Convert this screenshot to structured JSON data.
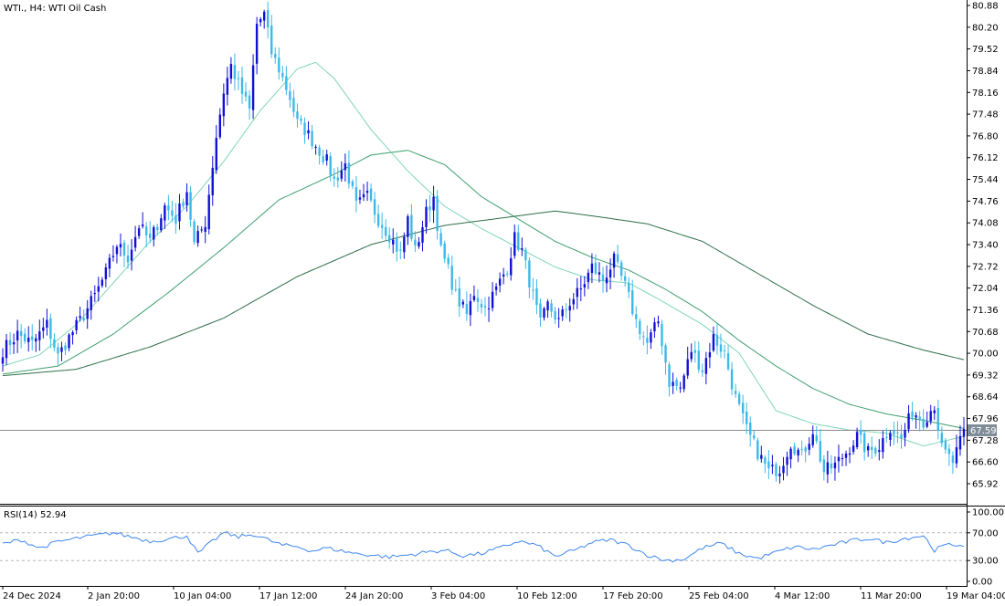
{
  "chart_data": [
    {
      "type": "candlestick",
      "title": "WTI., H4:  WTI Oil Cash",
      "y_ticks": [
        80.88,
        80.2,
        79.52,
        78.84,
        78.16,
        77.48,
        76.8,
        76.12,
        75.44,
        74.76,
        74.08,
        73.4,
        72.72,
        72.04,
        71.36,
        70.68,
        70.0,
        69.32,
        68.64,
        67.96,
        67.28,
        66.6,
        65.92
      ],
      "ylim": [
        65.5,
        81.0
      ],
      "current_price": "67.59",
      "current_price_value": 67.59,
      "x_tick_labels": [
        "24 Dec 2024",
        "2 Jan 20:00",
        "10 Jan 04:00",
        "17 Jan 12:00",
        "24 Jan 20:00",
        "3 Feb 04:00",
        "10 Feb 12:00",
        "17 Feb 20:00",
        "25 Feb 04:00",
        "4 Mar 12:00",
        "11 Mar 20:00",
        "19 Mar 04:00"
      ],
      "close_path": [
        [
          0,
          70.1
        ],
        [
          4,
          70.6
        ],
        [
          8,
          70.3
        ],
        [
          12,
          70.9
        ],
        [
          15,
          69.9
        ],
        [
          18,
          70.5
        ],
        [
          22,
          71.2
        ],
        [
          25,
          71.8
        ],
        [
          28,
          72.5
        ],
        [
          31,
          73.4
        ],
        [
          34,
          73.0
        ],
        [
          37,
          74.0
        ],
        [
          40,
          73.5
        ],
        [
          44,
          74.6
        ],
        [
          47,
          74.2
        ],
        [
          50,
          75.1
        ],
        [
          52,
          73.4
        ],
        [
          55,
          74.1
        ],
        [
          58,
          76.8
        ],
        [
          60,
          78.2
        ],
        [
          62,
          79.0
        ],
        [
          64,
          78.4
        ],
        [
          67,
          77.6
        ],
        [
          69,
          80.3
        ],
        [
          71,
          80.6
        ],
        [
          73,
          79.4
        ],
        [
          75,
          78.9
        ],
        [
          78,
          78.0
        ],
        [
          80,
          77.2
        ],
        [
          82,
          77.0
        ],
        [
          85,
          76.5
        ],
        [
          88,
          76.0
        ],
        [
          90,
          75.4
        ],
        [
          93,
          75.9
        ],
        [
          96,
          74.6
        ],
        [
          99,
          74.9
        ],
        [
          102,
          74.2
        ],
        [
          105,
          73.7
        ],
        [
          108,
          73.1
        ],
        [
          110,
          74.2
        ],
        [
          112,
          73.2
        ],
        [
          115,
          74.4
        ],
        [
          117,
          74.9
        ],
        [
          119,
          73.2
        ],
        [
          121,
          72.6
        ],
        [
          123,
          71.8
        ],
        [
          126,
          71.2
        ],
        [
          128,
          71.9
        ],
        [
          131,
          71.4
        ],
        [
          134,
          72.0
        ],
        [
          137,
          72.7
        ],
        [
          139,
          73.6
        ],
        [
          141,
          73.2
        ],
        [
          144,
          71.8
        ],
        [
          146,
          70.9
        ],
        [
          148,
          71.5
        ],
        [
          151,
          71.0
        ],
        [
          154,
          71.6
        ],
        [
          157,
          72.0
        ],
        [
          160,
          72.7
        ],
        [
          163,
          72.3
        ],
        [
          166,
          72.9
        ],
        [
          169,
          72.1
        ],
        [
          172,
          71.0
        ],
        [
          175,
          70.3
        ],
        [
          178,
          71.0
        ],
        [
          181,
          69.1
        ],
        [
          184,
          68.9
        ],
        [
          187,
          70.1
        ],
        [
          190,
          69.5
        ],
        [
          193,
          70.5
        ],
        [
          196,
          70.0
        ],
        [
          199,
          68.6
        ],
        [
          202,
          67.6
        ],
        [
          205,
          66.9
        ],
        [
          208,
          66.3
        ],
        [
          211,
          66.4
        ],
        [
          214,
          67.2
        ],
        [
          217,
          66.8
        ],
        [
          220,
          67.6
        ],
        [
          223,
          66.3
        ],
        [
          226,
          66.5
        ],
        [
          229,
          66.9
        ],
        [
          232,
          67.4
        ],
        [
          235,
          66.9
        ],
        [
          238,
          67.1
        ],
        [
          241,
          67.7
        ],
        [
          244,
          67.3
        ],
        [
          247,
          68.2
        ],
        [
          250,
          67.9
        ],
        [
          253,
          68.4
        ],
        [
          255,
          67.0
        ],
        [
          258,
          66.6
        ],
        [
          261,
          67.5
        ]
      ],
      "moving_averages": [
        {
          "color": "#7fd6b5",
          "points": [
            [
              0,
              69.6
            ],
            [
              10,
              69.95
            ],
            [
              20,
              70.9
            ],
            [
              30,
              72.2
            ],
            [
              40,
              73.5
            ],
            [
              50,
              74.6
            ],
            [
              60,
              76.0
            ],
            [
              70,
              77.6
            ],
            [
              80,
              78.9
            ],
            [
              85,
              79.1
            ],
            [
              90,
              78.6
            ],
            [
              100,
              77.0
            ],
            [
              110,
              75.7
            ],
            [
              120,
              74.6
            ],
            [
              130,
              73.9
            ],
            [
              140,
              73.3
            ],
            [
              150,
              72.7
            ],
            [
              160,
              72.3
            ],
            [
              170,
              72.2
            ],
            [
              178,
              71.7
            ],
            [
              190,
              70.9
            ],
            [
              200,
              70.0
            ],
            [
              210,
              68.2
            ],
            [
              220,
              67.8
            ],
            [
              230,
              67.6
            ],
            [
              240,
              67.5
            ],
            [
              250,
              67.1
            ],
            [
              261,
              67.4
            ]
          ]
        },
        {
          "color": "#3f9f6e",
          "points": [
            [
              0,
              69.35
            ],
            [
              15,
              69.6
            ],
            [
              30,
              70.6
            ],
            [
              45,
              71.9
            ],
            [
              60,
              73.3
            ],
            [
              75,
              74.8
            ],
            [
              90,
              75.6
            ],
            [
              100,
              76.2
            ],
            [
              110,
              76.35
            ],
            [
              120,
              75.9
            ],
            [
              130,
              74.9
            ],
            [
              140,
              74.2
            ],
            [
              150,
              73.5
            ],
            [
              160,
              73.0
            ],
            [
              170,
              72.6
            ],
            [
              180,
              72.0
            ],
            [
              190,
              71.3
            ],
            [
              200,
              70.4
            ],
            [
              210,
              69.6
            ],
            [
              220,
              68.9
            ],
            [
              230,
              68.4
            ],
            [
              240,
              68.1
            ],
            [
              250,
              67.9
            ],
            [
              261,
              67.65
            ]
          ]
        },
        {
          "color": "#2e6e48",
          "points": [
            [
              0,
              69.3
            ],
            [
              20,
              69.5
            ],
            [
              40,
              70.2
            ],
            [
              60,
              71.1
            ],
            [
              80,
              72.4
            ],
            [
              100,
              73.4
            ],
            [
              120,
              74.0
            ],
            [
              140,
              74.3
            ],
            [
              150,
              74.45
            ],
            [
              160,
              74.3
            ],
            [
              175,
              74.05
            ],
            [
              190,
              73.5
            ],
            [
              205,
              72.5
            ],
            [
              220,
              71.5
            ],
            [
              235,
              70.6
            ],
            [
              250,
              70.1
            ],
            [
              261,
              69.8
            ]
          ]
        }
      ],
      "grid": false
    },
    {
      "type": "line",
      "title": "RSI(14) 52.94",
      "y_ticks": [
        "100.00",
        "70.00",
        "30.00",
        "0.00"
      ],
      "ylim": [
        0,
        100
      ],
      "levels": [
        70,
        30
      ],
      "series": [
        {
          "color": "#3d86f0",
          "points": [
            [
              0,
              54
            ],
            [
              5,
              60
            ],
            [
              10,
              48
            ],
            [
              15,
              57
            ],
            [
              20,
              62
            ],
            [
              25,
              66
            ],
            [
              30,
              70
            ],
            [
              35,
              64
            ],
            [
              40,
              58
            ],
            [
              45,
              61
            ],
            [
              50,
              66
            ],
            [
              53,
              40
            ],
            [
              57,
              58
            ],
            [
              60,
              70
            ],
            [
              64,
              64
            ],
            [
              68,
              68
            ],
            [
              72,
              60
            ],
            [
              76,
              52
            ],
            [
              80,
              50
            ],
            [
              84,
              44
            ],
            [
              88,
              48
            ],
            [
              92,
              44
            ],
            [
              96,
              40
            ],
            [
              100,
              38
            ],
            [
              105,
              35
            ],
            [
              110,
              38
            ],
            [
              115,
              42
            ],
            [
              120,
              45
            ],
            [
              125,
              37
            ],
            [
              130,
              40
            ],
            [
              135,
              48
            ],
            [
              140,
              58
            ],
            [
              145,
              52
            ],
            [
              150,
              36
            ],
            [
              155,
              44
            ],
            [
              160,
              56
            ],
            [
              165,
              60
            ],
            [
              170,
              52
            ],
            [
              175,
              38
            ],
            [
              180,
              30
            ],
            [
              185,
              32
            ],
            [
              190,
              48
            ],
            [
              195,
              55
            ],
            [
              200,
              40
            ],
            [
              205,
              33
            ],
            [
              210,
              42
            ],
            [
              215,
              50
            ],
            [
              220,
              46
            ],
            [
              225,
              52
            ],
            [
              230,
              58
            ],
            [
              235,
              62
            ],
            [
              240,
              56
            ],
            [
              245,
              62
            ],
            [
              250,
              66
            ],
            [
              253,
              45
            ],
            [
              256,
              52
            ],
            [
              261,
              53
            ]
          ]
        }
      ],
      "grid": false
    }
  ]
}
